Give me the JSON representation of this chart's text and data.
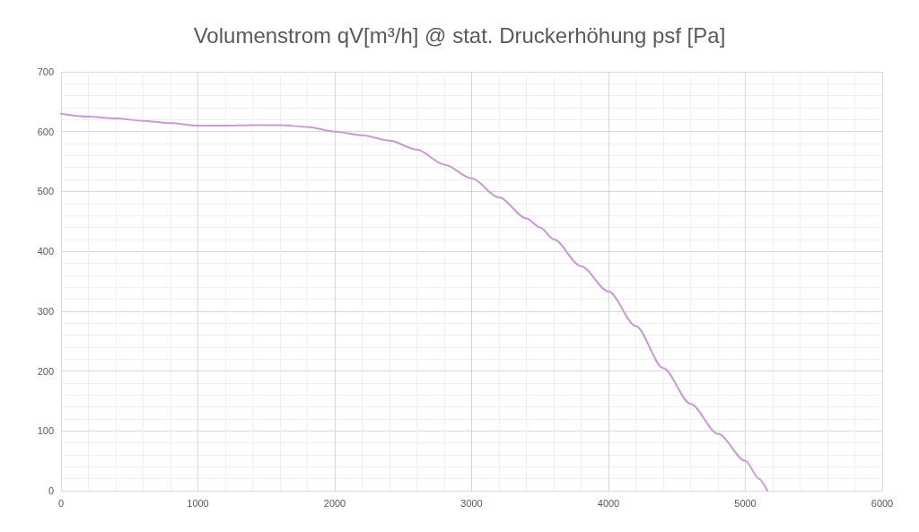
{
  "chart_data": {
    "type": "line",
    "title": "Volumenstrom qV[m³/h] @ stat. Druckerhöhung psf [Pa]",
    "x": [
      0,
      200,
      400,
      600,
      800,
      1000,
      1200,
      1400,
      1600,
      1800,
      2000,
      2200,
      2400,
      2600,
      2800,
      3000,
      3200,
      3400,
      3500,
      3600,
      3800,
      4000,
      4200,
      4400,
      4600,
      4800,
      5000,
      5100,
      5160
    ],
    "series": [
      {
        "color": "#cc99d6",
        "values": [
          630,
          625,
          622,
          618,
          614,
          610,
          610,
          611,
          611,
          608,
          600,
          594,
          585,
          570,
          545,
          522,
          490,
          455,
          440,
          420,
          375,
          333,
          275,
          205,
          145,
          95,
          50,
          20,
          0
        ]
      }
    ],
    "xlim": [
      0,
      6000
    ],
    "xticks": [
      0,
      1000,
      2000,
      3000,
      4000,
      5000,
      6000
    ],
    "ylim": [
      0,
      700
    ],
    "yticks": [
      0,
      100,
      200,
      300,
      400,
      500,
      600,
      700
    ],
    "grid": true,
    "marker": "none",
    "line_style": "solid"
  }
}
